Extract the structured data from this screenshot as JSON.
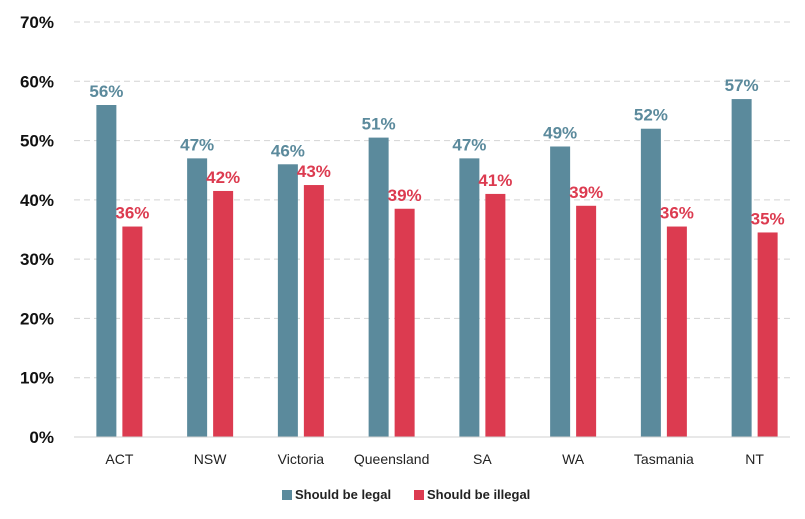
{
  "chart_data": {
    "type": "bar",
    "categories": [
      "ACT",
      "NSW",
      "Victoria",
      "Queensland",
      "SA",
      "WA",
      "Tasmania",
      "NT"
    ],
    "series": [
      {
        "name": "Should be legal",
        "color": "#5b8a9c",
        "values": [
          56,
          47,
          46,
          50.5,
          47,
          49,
          52,
          57
        ],
        "labels": [
          "56%",
          "47%",
          "46%",
          "51%",
          "47%",
          "49%",
          "52%",
          "57%"
        ]
      },
      {
        "name": "Should be illegal",
        "color": "#dc3b50",
        "values": [
          35.5,
          41.5,
          42.5,
          38.5,
          41,
          39,
          35.5,
          34.5
        ],
        "labels": [
          "36%",
          "42%",
          "43%",
          "39%",
          "41%",
          "39%",
          "36%",
          "35%"
        ]
      }
    ],
    "ylim": [
      0,
      70
    ],
    "yticks": [
      0,
      10,
      20,
      30,
      40,
      50,
      60,
      70
    ],
    "ytick_labels": [
      "0%",
      "10%",
      "20%",
      "30%",
      "40%",
      "50%",
      "60%",
      "70%"
    ],
    "grid": true,
    "legend_position": "bottom"
  }
}
